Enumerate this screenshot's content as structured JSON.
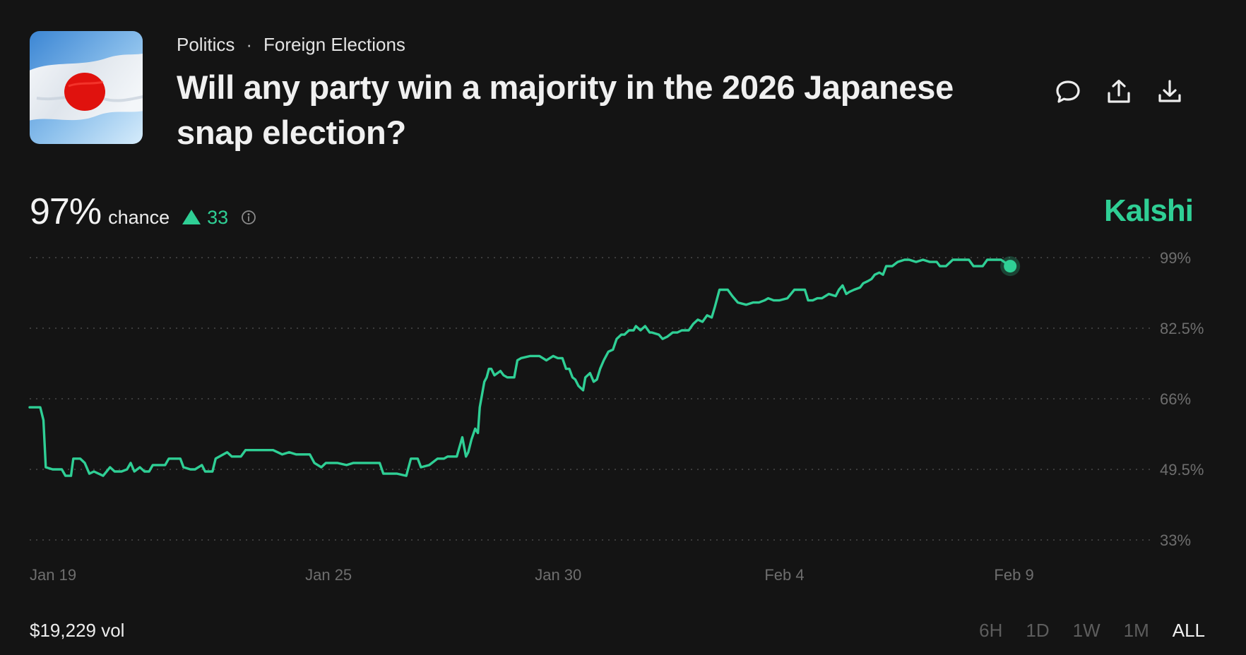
{
  "header": {
    "breadcrumb": [
      "Politics",
      "Foreign Elections"
    ],
    "breadcrumb_separator": "·",
    "title": "Will any party win a majority in the 2026 Japanese snap election?",
    "image_icon": "japan-flag-image",
    "actions": [
      {
        "name": "comment-icon"
      },
      {
        "name": "share-icon"
      },
      {
        "name": "download-icon"
      }
    ]
  },
  "summary": {
    "chance_value": "97%",
    "chance_label": "chance",
    "change_value": "33",
    "change_direction": "up",
    "brand": "Kalshi"
  },
  "colors": {
    "accent": "#2fcf95",
    "background": "#141414",
    "flag_red": "#e0120e"
  },
  "footer": {
    "volume": "$19,229 vol",
    "ranges": [
      "6H",
      "1D",
      "1W",
      "1M",
      "ALL"
    ],
    "active_range": "ALL"
  },
  "chart_data": {
    "type": "line",
    "x_unit": "days since Jan 19",
    "x_ticks": [
      {
        "label": "Jan 19",
        "x": 0
      },
      {
        "label": "Jan 25",
        "x": 6
      },
      {
        "label": "Jan 30",
        "x": 11
      },
      {
        "label": "Feb 4",
        "x": 16
      },
      {
        "label": "Feb 9",
        "x": 21
      }
    ],
    "y_ticks": [
      {
        "label": "99%",
        "value": 99
      },
      {
        "label": "82.5%",
        "value": 82.5
      },
      {
        "label": "66%",
        "value": 66
      },
      {
        "label": "49.5%",
        "value": 49.5
      },
      {
        "label": "33%",
        "value": 33
      }
    ],
    "ylim": [
      33,
      99
    ],
    "grid": true,
    "series": [
      {
        "name": "",
        "points": [
          [
            0,
            64
          ],
          [
            0.23,
            64
          ],
          [
            0.3,
            61
          ],
          [
            0.35,
            50
          ],
          [
            0.5,
            49.5
          ],
          [
            0.7,
            49.5
          ],
          [
            0.78,
            48
          ],
          [
            0.9,
            48
          ],
          [
            0.95,
            52
          ],
          [
            1.1,
            52
          ],
          [
            1.2,
            51
          ],
          [
            1.3,
            48.5
          ],
          [
            1.4,
            49
          ],
          [
            1.6,
            48
          ],
          [
            1.75,
            50
          ],
          [
            1.85,
            49
          ],
          [
            2.0,
            49
          ],
          [
            2.12,
            49.5
          ],
          [
            2.2,
            51
          ],
          [
            2.28,
            49
          ],
          [
            2.4,
            50
          ],
          [
            2.5,
            49
          ],
          [
            2.6,
            49
          ],
          [
            2.68,
            50.5
          ],
          [
            2.95,
            50.5
          ],
          [
            3.03,
            52
          ],
          [
            3.28,
            52
          ],
          [
            3.35,
            50
          ],
          [
            3.5,
            49.5
          ],
          [
            3.6,
            49.5
          ],
          [
            3.75,
            50.5
          ],
          [
            3.82,
            49
          ],
          [
            3.98,
            49
          ],
          [
            4.05,
            52
          ],
          [
            4.3,
            53.5
          ],
          [
            4.4,
            52.5
          ],
          [
            4.6,
            52.5
          ],
          [
            4.7,
            54
          ],
          [
            4.85,
            54
          ],
          [
            5.0,
            54
          ],
          [
            5.3,
            54
          ],
          [
            5.5,
            53
          ],
          [
            5.65,
            53.5
          ],
          [
            5.8,
            53
          ],
          [
            6.1,
            53
          ],
          [
            6.2,
            51
          ],
          [
            6.35,
            50
          ],
          [
            6.45,
            51
          ],
          [
            6.7,
            51
          ],
          [
            6.9,
            50.5
          ],
          [
            7.05,
            51
          ],
          [
            7.25,
            51
          ],
          [
            7.5,
            51
          ],
          [
            7.62,
            51
          ],
          [
            7.7,
            48.5
          ],
          [
            7.8,
            48.5
          ],
          [
            8.0,
            48.5
          ],
          [
            8.2,
            48
          ],
          [
            8.3,
            52
          ],
          [
            8.45,
            52
          ],
          [
            8.52,
            50
          ],
          [
            8.7,
            50.5
          ],
          [
            8.88,
            52
          ],
          [
            9.02,
            52
          ],
          [
            9.1,
            52.5
          ],
          [
            9.3,
            52.5
          ],
          [
            9.42,
            57
          ],
          [
            9.5,
            52.5
          ],
          [
            9.55,
            53.5
          ],
          [
            9.62,
            56.5
          ],
          [
            9.7,
            59
          ],
          [
            9.76,
            58
          ],
          [
            9.8,
            64
          ],
          [
            9.9,
            70
          ],
          [
            9.95,
            71
          ],
          [
            10.0,
            73
          ],
          [
            10.05,
            73
          ],
          [
            10.12,
            71.5
          ],
          [
            10.25,
            72.5
          ],
          [
            10.32,
            71.5
          ],
          [
            10.4,
            71
          ],
          [
            10.55,
            71
          ],
          [
            10.62,
            75
          ],
          [
            10.7,
            75.5
          ],
          [
            10.9,
            76
          ],
          [
            11.1,
            76
          ],
          [
            11.25,
            75
          ],
          [
            11.4,
            76
          ],
          [
            11.5,
            75.5
          ],
          [
            11.6,
            75.5
          ],
          [
            11.68,
            73
          ],
          [
            11.75,
            73
          ],
          [
            11.82,
            71
          ],
          [
            11.88,
            70.5
          ],
          [
            11.95,
            69
          ],
          [
            12.05,
            68
          ],
          [
            12.1,
            71
          ],
          [
            12.2,
            72
          ],
          [
            12.28,
            70
          ],
          [
            12.35,
            70.5
          ],
          [
            12.42,
            73
          ],
          [
            12.5,
            75
          ],
          [
            12.6,
            77
          ],
          [
            12.7,
            77.5
          ],
          [
            12.78,
            80
          ],
          [
            12.88,
            81
          ],
          [
            12.95,
            81
          ],
          [
            13.05,
            82
          ],
          [
            13.15,
            82
          ],
          [
            13.2,
            83
          ],
          [
            13.3,
            82
          ],
          [
            13.4,
            83
          ],
          [
            13.5,
            81.5
          ],
          [
            13.55,
            81.5
          ],
          [
            13.7,
            81
          ],
          [
            13.78,
            80
          ],
          [
            13.88,
            80.5
          ],
          [
            14.0,
            81.5
          ],
          [
            14.1,
            81.5
          ],
          [
            14.2,
            82
          ],
          [
            14.35,
            82
          ],
          [
            14.45,
            83.5
          ],
          [
            14.55,
            84.5
          ],
          [
            14.65,
            84
          ],
          [
            14.75,
            85.5
          ],
          [
            14.85,
            85
          ],
          [
            14.92,
            87.5
          ],
          [
            15.02,
            91.5
          ],
          [
            15.2,
            91.5
          ],
          [
            15.3,
            90
          ],
          [
            15.42,
            88.5
          ],
          [
            15.6,
            88
          ],
          [
            15.75,
            88.5
          ],
          [
            15.88,
            88.5
          ],
          [
            16.0,
            89
          ],
          [
            16.08,
            89.5
          ],
          [
            16.2,
            89
          ],
          [
            16.32,
            89
          ],
          [
            16.5,
            89.5
          ],
          [
            16.65,
            91.5
          ],
          [
            16.88,
            91.5
          ],
          [
            16.95,
            89
          ],
          [
            17.05,
            89
          ],
          [
            17.15,
            89.5
          ],
          [
            17.25,
            89.5
          ],
          [
            17.4,
            90.5
          ],
          [
            17.55,
            90
          ],
          [
            17.62,
            91.5
          ],
          [
            17.7,
            92.5
          ],
          [
            17.78,
            90.5
          ],
          [
            17.85,
            91
          ],
          [
            17.95,
            91.5
          ],
          [
            18.08,
            92
          ],
          [
            18.15,
            93
          ],
          [
            18.25,
            93.5
          ],
          [
            18.33,
            94
          ],
          [
            18.4,
            95
          ],
          [
            18.5,
            95.5
          ],
          [
            18.58,
            95
          ],
          [
            18.65,
            97
          ],
          [
            18.78,
            97
          ],
          [
            18.9,
            98
          ],
          [
            19.05,
            98.5
          ],
          [
            19.15,
            98.5
          ],
          [
            19.3,
            98
          ],
          [
            19.45,
            98.5
          ],
          [
            19.6,
            98
          ],
          [
            19.75,
            98
          ],
          [
            19.82,
            97
          ],
          [
            19.95,
            97
          ],
          [
            20.1,
            98.5
          ],
          [
            20.3,
            98.5
          ],
          [
            20.45,
            98.5
          ],
          [
            20.55,
            97
          ],
          [
            20.75,
            97
          ],
          [
            20.85,
            98.5
          ],
          [
            21.0,
            98.5
          ],
          [
            21.15,
            98.5
          ],
          [
            21.35,
            97
          ]
        ]
      }
    ]
  }
}
